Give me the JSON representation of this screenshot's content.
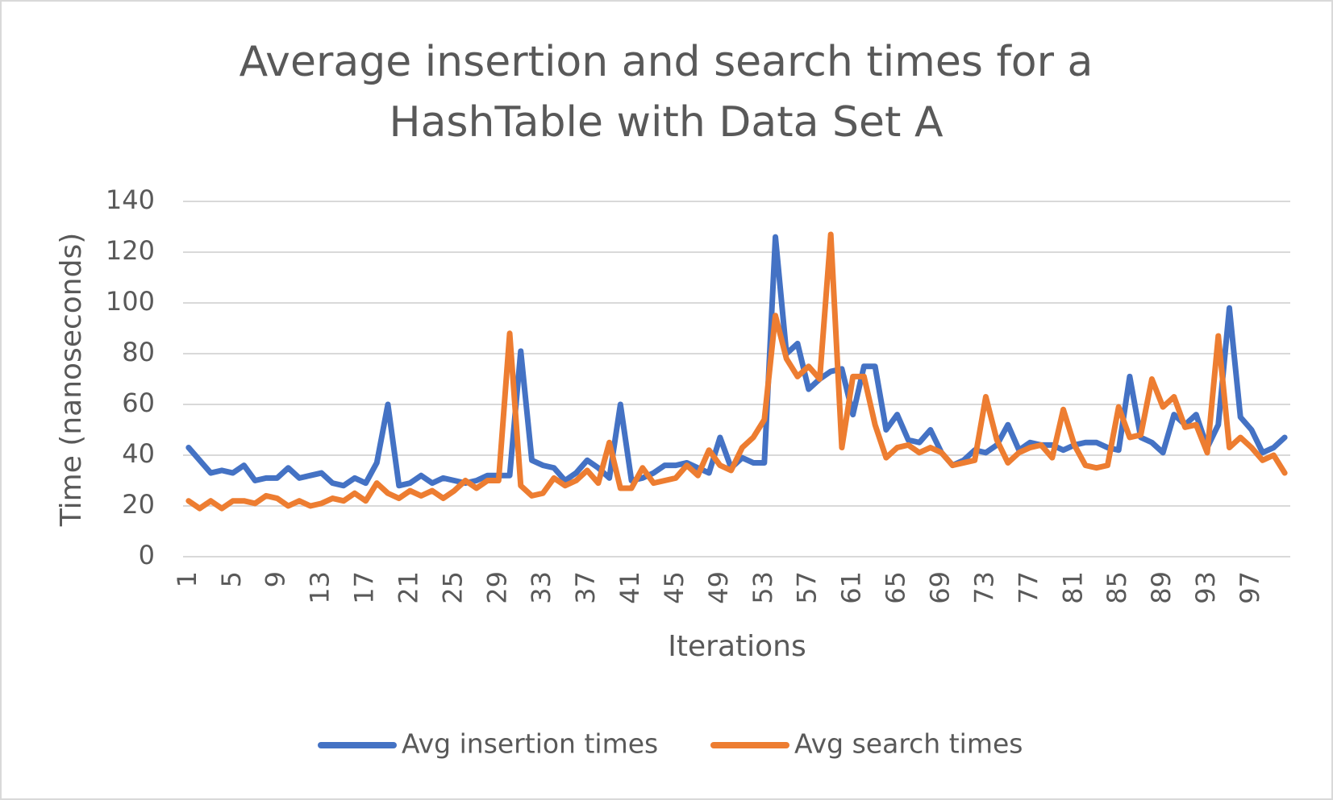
{
  "chart_data": {
    "type": "line",
    "title": [
      "Average insertion and search times for a",
      "HashTable with Data Set A"
    ],
    "x_label": "Iterations",
    "y_label": "Time (nanoseconds)",
    "categories": [
      "1",
      null,
      null,
      null,
      "5",
      null,
      null,
      null,
      "9",
      null,
      null,
      null,
      "13",
      null,
      null,
      null,
      "17",
      null,
      null,
      null,
      "21",
      null,
      null,
      null,
      "25",
      null,
      null,
      null,
      "29",
      null,
      null,
      null,
      "33",
      null,
      null,
      null,
      "37",
      null,
      null,
      null,
      "41",
      null,
      null,
      null,
      "45",
      null,
      null,
      null,
      "49",
      null,
      null,
      null,
      "53",
      null,
      null,
      null,
      "57",
      null,
      null,
      null,
      "61",
      null,
      null,
      null,
      "65",
      null,
      null,
      null,
      "69",
      null,
      null,
      null,
      "73",
      null,
      null,
      null,
      "77",
      null,
      null,
      null,
      "81",
      null,
      null,
      null,
      "85",
      null,
      null,
      null,
      "89",
      null,
      null,
      null,
      "93",
      null,
      null,
      null,
      "97",
      null,
      null,
      null
    ],
    "series": [
      {
        "name": "Avg insertion times",
        "color": "#4472c4",
        "values": [
          43,
          38,
          33,
          34,
          33,
          36,
          30,
          31,
          31,
          35,
          31,
          32,
          33,
          29,
          28,
          31,
          29,
          37,
          60,
          28,
          29,
          32,
          29,
          31,
          30,
          29,
          30,
          32,
          32,
          32,
          81,
          38,
          36,
          35,
          30,
          33,
          38,
          35,
          31,
          60,
          30,
          31,
          33,
          36,
          36,
          37,
          35,
          33,
          47,
          35,
          39,
          37,
          37,
          126,
          80,
          84,
          66,
          70,
          73,
          74,
          56,
          75,
          75,
          50,
          56,
          46,
          45,
          50,
          41,
          36,
          38,
          42,
          41,
          44,
          52,
          42,
          45,
          44,
          44,
          42,
          44,
          45,
          45,
          43,
          42,
          71,
          47,
          45,
          41,
          56,
          52,
          56,
          43,
          52,
          98,
          55,
          50,
          41,
          43,
          47
        ]
      },
      {
        "name": "Avg search times",
        "color": "#ed7d31",
        "values": [
          22,
          19,
          22,
          19,
          22,
          22,
          21,
          24,
          23,
          20,
          22,
          20,
          21,
          23,
          22,
          25,
          22,
          29,
          25,
          23,
          26,
          24,
          26,
          23,
          26,
          30,
          27,
          30,
          30,
          88,
          28,
          24,
          25,
          31,
          28,
          30,
          34,
          29,
          45,
          27,
          27,
          35,
          29,
          30,
          31,
          36,
          32,
          42,
          36,
          34,
          43,
          47,
          54,
          95,
          78,
          71,
          75,
          70,
          127,
          43,
          71,
          71,
          52,
          39,
          43,
          44,
          41,
          43,
          41,
          36,
          37,
          38,
          63,
          46,
          37,
          41,
          43,
          44,
          39,
          58,
          44,
          36,
          35,
          36,
          59,
          47,
          48,
          70,
          59,
          63,
          51,
          52,
          41,
          87,
          43,
          47,
          43,
          38,
          40,
          33
        ]
      }
    ],
    "ylim": [
      0,
      140
    ],
    "yticks": [
      0,
      20,
      40,
      60,
      80,
      100,
      120,
      140
    ],
    "grid": true,
    "legend": "bottom"
  }
}
